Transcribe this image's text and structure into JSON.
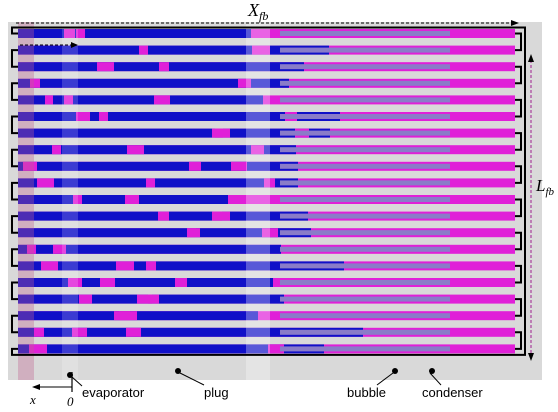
{
  "diagram": {
    "channel_count": 20,
    "colors": {
      "background": "#d9d9d9",
      "liquid_plug": "#1010c8",
      "vapor_bubble": "#e020d8",
      "evaporator_tint": "#c06090",
      "light_band": "#8a7cc8",
      "frame": "#000000"
    },
    "labels": {
      "top_dimension": "X",
      "top_dimension_sub": "fb",
      "side_dimension": "L",
      "side_dimension_sub": "fb",
      "axis_x": "x",
      "axis_zero": "0",
      "evaporator": "evaporator",
      "plug": "plug",
      "bubble": "bubble",
      "condenser": "condenser"
    }
  }
}
